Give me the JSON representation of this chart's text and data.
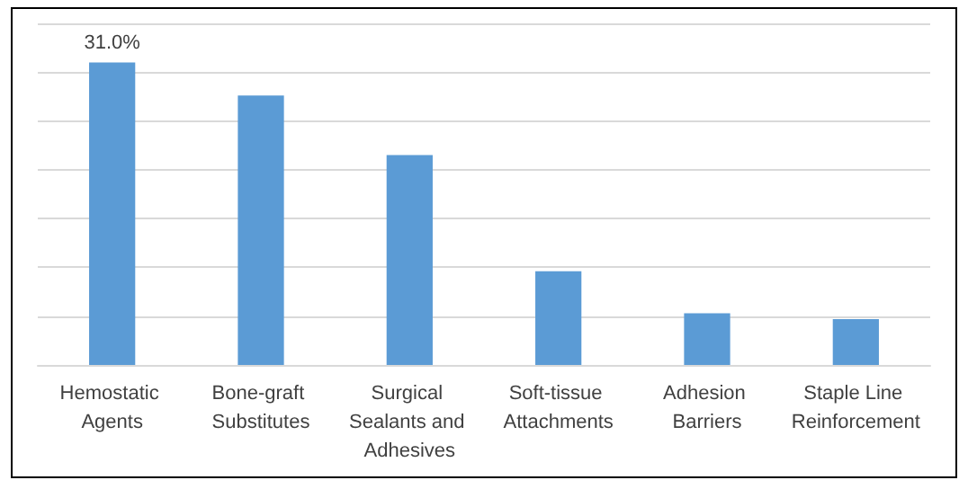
{
  "chart_data": {
    "type": "bar",
    "categories": [
      "Hemostatic Agents",
      "Bone-graft Substitutes",
      "Surgical Sealants and Adhesives",
      "Soft-tissue Attachments",
      "Adhesion Barriers",
      "Staple Line Reinforcement"
    ],
    "values": [
      31.0,
      27.6,
      21.5,
      9.6,
      5.3,
      4.7
    ],
    "value_labels": [
      "31.0%",
      null,
      null,
      null,
      null,
      null
    ],
    "color": "#5b9bd5",
    "grid": "y",
    "ylim": [
      0,
      35
    ],
    "yticks": [
      {
        "value": 0,
        "label": null
      },
      {
        "value": 5,
        "label": null
      },
      {
        "value": 10,
        "label": null
      },
      {
        "value": 15,
        "label": null
      },
      {
        "value": 20,
        "label": null
      },
      {
        "value": 25,
        "label": null
      },
      {
        "value": 30,
        "label": null
      },
      {
        "value": 35,
        "label": null
      }
    ]
  }
}
